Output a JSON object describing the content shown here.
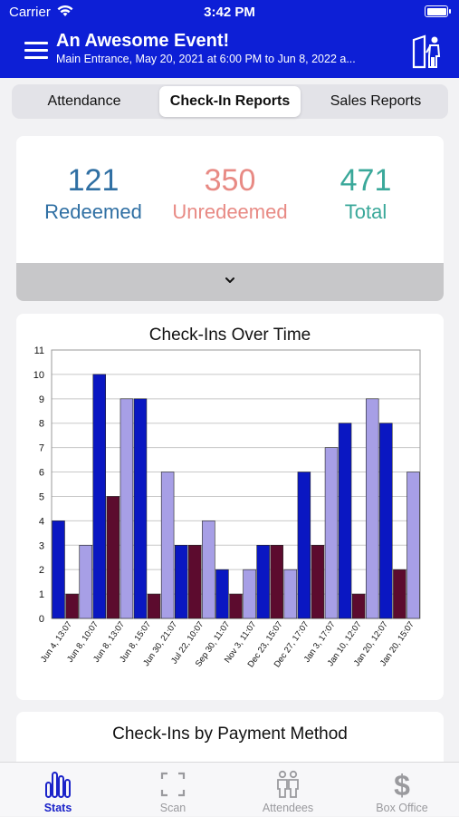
{
  "status_bar": {
    "carrier": "Carrier",
    "time": "3:42 PM"
  },
  "header": {
    "title": "An Awesome Event!",
    "subtitle": "Main Entrance, May 20, 2021 at 6:00 PM to Jun  8, 2022 a..."
  },
  "tabs": [
    {
      "label": "Attendance",
      "active": false
    },
    {
      "label": "Check-In Reports",
      "active": true
    },
    {
      "label": "Sales Reports",
      "active": false
    }
  ],
  "stats": {
    "redeemed": {
      "value": "121",
      "label": "Redeemed",
      "color": "#2f6fa3"
    },
    "unredeemed": {
      "value": "350",
      "label": "Unredeemed",
      "color": "#e88a84"
    },
    "total": {
      "value": "471",
      "label": "Total",
      "color": "#3aa89a"
    }
  },
  "chart_title": "Check-Ins Over Time",
  "chart_data": {
    "type": "bar",
    "title": "Check-Ins Over Time",
    "categories": [
      "Jun 4, 13:07",
      "Jun 8, 10:07",
      "Jun 8, 13:07",
      "Jun 8, 15:07",
      "Jun 30, 21:07",
      "Jul 22, 10:07",
      "Sep 30, 11:07",
      "Nov 3, 11:07",
      "Dec 23, 15:07",
      "Dec 27, 17:07",
      "Jan 3, 17:07",
      "Jan 10, 12:07",
      "Jan 20, 12:07",
      "Jan 20, 15:07"
    ],
    "bars": [
      {
        "category": 0,
        "series": "blue",
        "value": 4
      },
      {
        "category": 0,
        "series": "maroon",
        "value": 1
      },
      {
        "category": 1,
        "series": "lavender",
        "value": 3
      },
      {
        "category": 1,
        "series": "blue",
        "value": 10
      },
      {
        "category": 1,
        "series": "maroon",
        "value": 5
      },
      {
        "category": 2,
        "series": "lavender",
        "value": 9
      },
      {
        "category": 3,
        "series": "blue",
        "value": 9
      },
      {
        "category": 3,
        "series": "maroon",
        "value": 1
      },
      {
        "category": 4,
        "series": "lavender",
        "value": 6
      },
      {
        "category": 4,
        "series": "blue",
        "value": 3
      },
      {
        "category": 5,
        "series": "maroon",
        "value": 3
      },
      {
        "category": 5,
        "series": "lavender",
        "value": 4
      },
      {
        "category": 6,
        "series": "blue",
        "value": 2
      },
      {
        "category": 6,
        "series": "maroon",
        "value": 1
      },
      {
        "category": 7,
        "series": "lavender",
        "value": 2
      },
      {
        "category": 8,
        "series": "blue",
        "value": 3
      },
      {
        "category": 8,
        "series": "maroon",
        "value": 3
      },
      {
        "category": 8,
        "series": "lavender",
        "value": 2
      },
      {
        "category": 9,
        "series": "blue",
        "value": 6
      },
      {
        "category": 9,
        "series": "maroon",
        "value": 3
      },
      {
        "category": 10,
        "series": "lavender",
        "value": 7
      },
      {
        "category": 10,
        "series": "blue",
        "value": 8
      },
      {
        "category": 11,
        "series": "maroon",
        "value": 1
      },
      {
        "category": 11,
        "series": "lavender",
        "value": 9
      },
      {
        "category": 12,
        "series": "blue",
        "value": 8
      },
      {
        "category": 12,
        "series": "maroon",
        "value": 2
      },
      {
        "category": 13,
        "series": "lavender",
        "value": 6
      }
    ],
    "series_colors": {
      "blue": "#0a17c2",
      "maroon": "#5c0b2e",
      "lavender": "#a79fe6"
    },
    "ylim": [
      0,
      11
    ],
    "yticks": [
      0,
      1,
      2,
      3,
      4,
      5,
      6,
      7,
      8,
      9,
      10,
      11
    ],
    "grid": true
  },
  "next_card_title": "Check-Ins by Payment Method",
  "tabbar": [
    {
      "label": "Stats",
      "icon": "stats-icon",
      "active": true
    },
    {
      "label": "Scan",
      "icon": "scan-icon",
      "active": false
    },
    {
      "label": "Attendees",
      "icon": "attendees-icon",
      "active": false
    },
    {
      "label": "Box Office",
      "icon": "dollar-icon",
      "active": false
    }
  ],
  "colors": {
    "header": "#0d1fd6",
    "active_tab": "#1a22c9"
  }
}
